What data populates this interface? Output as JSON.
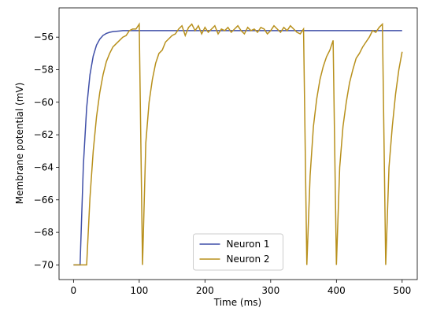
{
  "chart_data": {
    "type": "line",
    "xlabel": "Time (ms)",
    "ylabel": "Membrane potential (mV)",
    "x": [
      0,
      5,
      10,
      15,
      20,
      25,
      30,
      35,
      40,
      45,
      50,
      55,
      60,
      65,
      70,
      75,
      80,
      85,
      90,
      95,
      100,
      105,
      110,
      115,
      120,
      125,
      130,
      135,
      140,
      145,
      150,
      155,
      160,
      165,
      170,
      175,
      180,
      185,
      190,
      195,
      200,
      205,
      210,
      215,
      220,
      225,
      230,
      235,
      240,
      245,
      250,
      255,
      260,
      265,
      270,
      275,
      280,
      285,
      290,
      295,
      300,
      305,
      310,
      315,
      320,
      325,
      330,
      335,
      340,
      345,
      350,
      355,
      360,
      365,
      370,
      375,
      380,
      385,
      390,
      395,
      400,
      405,
      410,
      415,
      420,
      425,
      430,
      435,
      440,
      445,
      450,
      455,
      460,
      465,
      470,
      475,
      480,
      485,
      490,
      495,
      500
    ],
    "series": [
      {
        "name": "Neuron 1",
        "color": "#3f4fa8",
        "values": [
          -70,
          -70,
          -70,
          -63.87,
          -60.34,
          -58.32,
          -57.16,
          -56.49,
          -56.12,
          -55.89,
          -55.77,
          -55.7,
          -55.66,
          -55.64,
          -55.62,
          -55.6,
          -55.6,
          -55.6,
          -55.6,
          -55.6,
          -55.6,
          -55.6,
          -55.6,
          -55.6,
          -55.6,
          -55.6,
          -55.6,
          -55.6,
          -55.6,
          -55.6,
          -55.6,
          -55.6,
          -55.6,
          -55.6,
          -55.6,
          -55.6,
          -55.6,
          -55.6,
          -55.6,
          -55.6,
          -55.6,
          -55.6,
          -55.6,
          -55.6,
          -55.6,
          -55.6,
          -55.6,
          -55.6,
          -55.6,
          -55.6,
          -55.6,
          -55.6,
          -55.6,
          -55.6,
          -55.6,
          -55.6,
          -55.6,
          -55.6,
          -55.6,
          -55.6,
          -55.6,
          -55.6,
          -55.6,
          -55.6,
          -55.6,
          -55.6,
          -55.6,
          -55.6,
          -55.6,
          -55.6,
          -55.6,
          -55.6,
          -55.6,
          -55.6,
          -55.6,
          -55.6,
          -55.6,
          -55.6,
          -55.6,
          -55.6,
          -55.6,
          -55.6,
          -55.6,
          -55.6,
          -55.6,
          -55.6,
          -55.6,
          -55.6,
          -55.6,
          -55.6,
          -55.6,
          -55.6,
          -55.6,
          -55.6,
          -55.6,
          -55.6,
          -55.6,
          -55.6,
          -55.6,
          -55.6,
          -55.6
        ]
      },
      {
        "name": "Neuron 2",
        "color": "#b8901c",
        "values": [
          -70,
          -70,
          -70,
          -70,
          -70,
          -65.9,
          -63.0,
          -60.9,
          -59.4,
          -58.3,
          -57.5,
          -57.0,
          -56.6,
          -56.4,
          -56.2,
          -56.0,
          -55.9,
          -55.6,
          -55.5,
          -55.5,
          -55.2,
          -70,
          -62.5,
          -60.0,
          -58.6,
          -57.6,
          -57.0,
          -56.8,
          -56.3,
          -56.1,
          -55.9,
          -55.8,
          -55.5,
          -55.3,
          -55.9,
          -55.4,
          -55.2,
          -55.6,
          -55.3,
          -55.8,
          -55.4,
          -55.7,
          -55.5,
          -55.3,
          -55.8,
          -55.5,
          -55.6,
          -55.4,
          -55.7,
          -55.5,
          -55.3,
          -55.6,
          -55.8,
          -55.4,
          -55.6,
          -55.5,
          -55.7,
          -55.4,
          -55.5,
          -55.8,
          -55.6,
          -55.3,
          -55.5,
          -55.7,
          -55.4,
          -55.6,
          -55.3,
          -55.5,
          -55.7,
          -55.8,
          -55.5,
          -70,
          -64.5,
          -61.5,
          -59.8,
          -58.6,
          -57.8,
          -57.2,
          -56.8,
          -56.2,
          -70,
          -64.0,
          -61.5,
          -60.0,
          -58.8,
          -58.0,
          -57.3,
          -57.0,
          -56.6,
          -56.3,
          -56.0,
          -55.6,
          -55.7,
          -55.4,
          -55.2,
          -70,
          -64.0,
          -61.5,
          -59.5,
          -58.0,
          -56.9
        ]
      }
    ],
    "xlim": [
      -22,
      523
    ],
    "xticks": [
      0,
      100,
      200,
      300,
      400,
      500
    ],
    "ylim": [
      -70.9,
      -54.2
    ],
    "yticks": [
      {
        "value": -70,
        "label": "−70"
      },
      {
        "value": -68,
        "label": "−68"
      },
      {
        "value": -66,
        "label": "−66"
      },
      {
        "value": -64,
        "label": "−64"
      },
      {
        "value": -62,
        "label": "−62"
      },
      {
        "value": -60,
        "label": "−60"
      },
      {
        "value": -58,
        "label": "−58"
      },
      {
        "value": -56,
        "label": "−56"
      }
    ],
    "legend": "lower center"
  }
}
